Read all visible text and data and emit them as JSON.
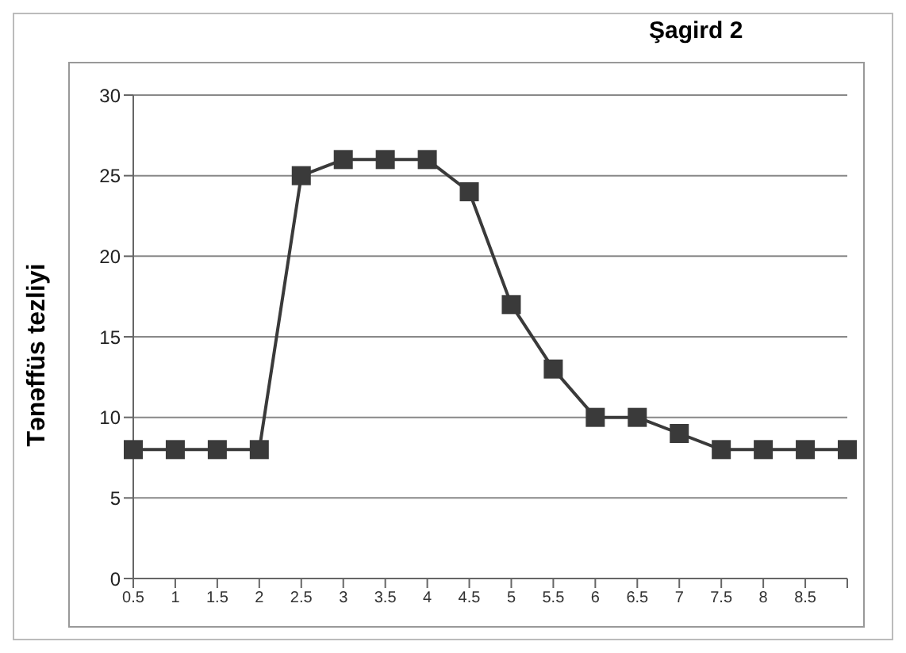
{
  "chart_data": {
    "type": "line",
    "title": "Şagird 2",
    "ylabel": "Tənəffüs tezliyi",
    "categories": [
      "0.5",
      "1",
      "1.5",
      "2",
      "2.5",
      "3",
      "3.5",
      "4",
      "4.5",
      "5",
      "5.5",
      "6",
      "6.5",
      "7",
      "7.5",
      "8",
      "8.5",
      null
    ],
    "series": [
      {
        "color": "#3a3a3a",
        "values": [
          8,
          8,
          8,
          8,
          25,
          26,
          26,
          26,
          24,
          17,
          13,
          10,
          10,
          9,
          8,
          8,
          8,
          8
        ]
      }
    ],
    "ylim": [
      0,
      30
    ],
    "yticks": [
      0,
      5,
      10,
      15,
      20,
      25,
      30
    ],
    "grid": "y",
    "marker": "square",
    "line_style": "solid",
    "legend": false
  }
}
